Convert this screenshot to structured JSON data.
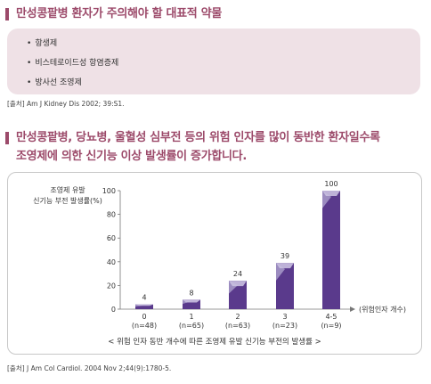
{
  "section1": {
    "title": "만성콩팥병 환자가 주의해야 할 대표적 약물",
    "drugs": [
      "항생제",
      "비스테로이드성 항염증제",
      "방사선 조영제"
    ],
    "source": "[출처] Am J Kidney Dis 2002; 39:S1."
  },
  "section2": {
    "title_line1": "만성콩팥병, 당뇨병, 울혈성 심부전 등의 위험 인자를 많이 동반한 환자일수록",
    "title_line2": "조영제에 의한 신기능 이상 발생률이 증가합니다.",
    "source": "[출처] J Am Col Cardiol. 2004 Nov 2;44(9):1780-5."
  },
  "chart_data": {
    "type": "bar",
    "title": "",
    "ylabel_line1": "조영제 유발",
    "ylabel_line2": "신기능 부전 발생률(%)",
    "xlabel": "(위험인자 개수)",
    "caption": "< 위험 인자 동반 개수에 따른 조영제 유발 신기능 부전의 발생률 >",
    "categories": [
      "0",
      "1",
      "2",
      "3",
      "4-5"
    ],
    "n_labels": [
      "(n=48)",
      "(n=65)",
      "(n=63)",
      "(n=23)",
      "(n=9)"
    ],
    "values": [
      4,
      8,
      24,
      39,
      100
    ],
    "ylim": [
      0,
      100
    ],
    "yticks": [
      0,
      20,
      40,
      60,
      80,
      100
    ],
    "colors": {
      "front": "#5a3a8c",
      "light": "#9c8cc0",
      "top": "#c9c0e0",
      "accent": "#9c4a6a"
    }
  }
}
